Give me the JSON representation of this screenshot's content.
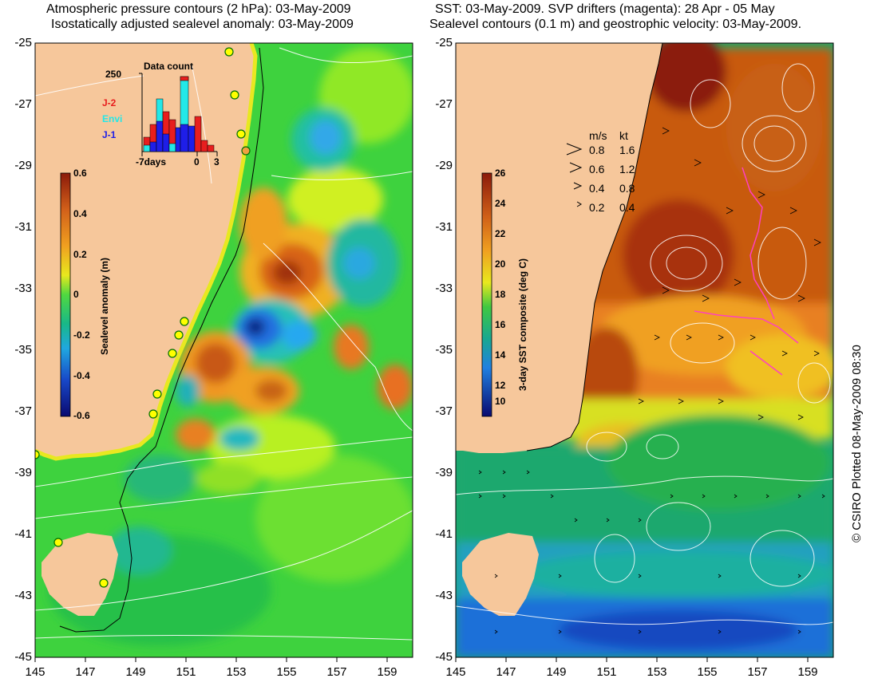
{
  "left_panel": {
    "title_line1": "Atmospheric pressure contours (2 hPa): 03-May-2009",
    "title_line2": "Isostatically adjusted sealevel anomaly: 03-May-2009",
    "colorbar": {
      "label": "Sealevel anomaly (m)",
      "ticks": [
        "0.6",
        "0.4",
        "0.2",
        "0",
        "-0.2",
        "-0.4",
        "-0.6"
      ]
    },
    "data_count": {
      "title": "Data count",
      "ymax_label": "250",
      "x_labels": [
        "-7days",
        "0",
        "3"
      ],
      "legend": [
        {
          "name": "J-2",
          "color": "#e81e1e"
        },
        {
          "name": "Envi",
          "color": "#22e8e8"
        },
        {
          "name": "J-1",
          "color": "#1e1ee8"
        }
      ]
    }
  },
  "right_panel": {
    "title_line1": "SST: 03-May-2009. SVP drifters (magenta): 28 Apr - 05 May",
    "title_line2": "Sealevel contours (0.1 m) and geostrophic velocity: 03-May-2009.",
    "colorbar": {
      "label": "3-day SST composite (deg C)",
      "ticks": [
        "26",
        "24",
        "22",
        "20",
        "18",
        "16",
        "14",
        "12",
        "10"
      ]
    },
    "vector_legend": {
      "units": [
        "m/s",
        "kt"
      ],
      "rows": [
        {
          "ms": "0.8",
          "kt": "1.6"
        },
        {
          "ms": "0.6",
          "kt": "1.2"
        },
        {
          "ms": "0.4",
          "kt": "0.8"
        },
        {
          "ms": "0.2",
          "kt": "0.4"
        }
      ]
    }
  },
  "axes": {
    "y_ticks": [
      "-25",
      "-27",
      "-29",
      "-31",
      "-33",
      "-35",
      "-37",
      "-39",
      "-41",
      "-43",
      "-45"
    ],
    "left_x_ticks": [
      "145",
      "147",
      "149",
      "151",
      "153",
      "155",
      "157",
      "159"
    ],
    "right_x_ticks": [
      "145",
      "147",
      "149",
      "151",
      "153",
      "155",
      "157",
      "159"
    ]
  },
  "copyright": "© CSIRO Plotted 08-May-2009 08:30"
}
